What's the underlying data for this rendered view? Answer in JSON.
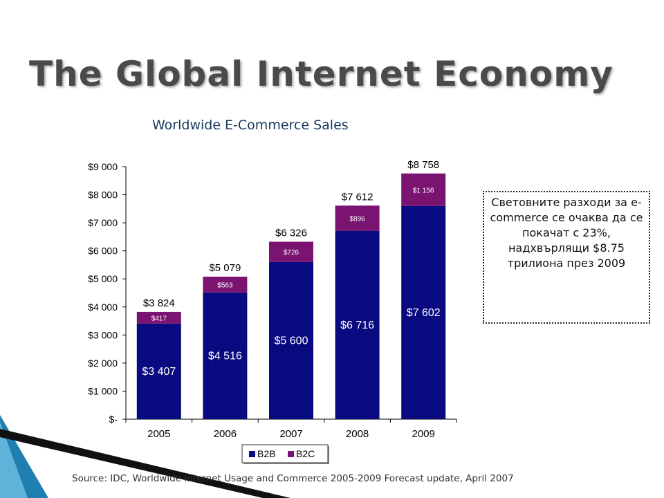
{
  "slide": {
    "title": "The Global Internet Economy",
    "source": "Source: IDC, Worldwide Internet Usage and Commerce 2005-2009 Forecast update, April 2007",
    "note": "Световните разходи за e-commerce се очаква да се покачат с 23%, надхвърлящи $8.75 трилиона през 2009"
  },
  "chart_data": {
    "type": "bar",
    "stacked": true,
    "title": "Worldwide E-Commerce Sales",
    "categories": [
      "2005",
      "2006",
      "2007",
      "2008",
      "2009"
    ],
    "series": [
      {
        "name": "B2B",
        "values": [
          3407,
          4516,
          5600,
          6716,
          7602
        ],
        "labels": [
          "$3 407",
          "$4 516",
          "$5 600",
          "$6 716",
          "$7 602"
        ],
        "color": "#0a0a80"
      },
      {
        "name": "B2C",
        "values": [
          417,
          563,
          726,
          896,
          1156
        ],
        "labels": [
          "$417",
          "$563",
          "$726",
          "$896",
          "$1 156"
        ],
        "color": "#7a1470"
      }
    ],
    "totals": [
      3824,
      5079,
      6326,
      7612,
      8758
    ],
    "total_labels": [
      "$3 824",
      "$5 079",
      "$6 326",
      "$7 612",
      "$8 758"
    ],
    "yticks": [
      0,
      1000,
      2000,
      3000,
      4000,
      5000,
      6000,
      7000,
      8000,
      9000
    ],
    "ytick_labels": [
      "$-",
      "$1 000",
      "$2 000",
      "$3 000",
      "$4 000",
      "$5 000",
      "$6 000",
      "$7 000",
      "$8 000",
      "$9 000"
    ],
    "ylim": [
      0,
      9000
    ],
    "legend_position": "bottom",
    "grid": false
  }
}
